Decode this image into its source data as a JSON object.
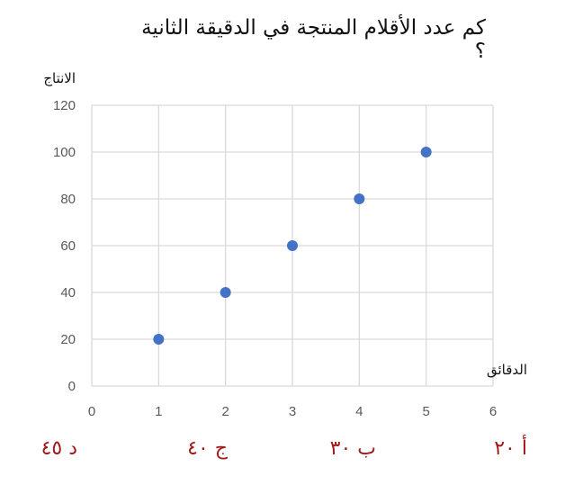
{
  "question": "كم عدد الأقلام المنتجة في الدقيقة الثانية ؟",
  "chart_data": {
    "type": "scatter",
    "ylabel": "الانتاج",
    "xlabel": "الدقائق",
    "x": [
      1,
      2,
      3,
      4,
      5
    ],
    "y": [
      20,
      40,
      60,
      80,
      100
    ],
    "xlim": [
      0,
      6
    ],
    "ylim": [
      0,
      120
    ],
    "xticks": [
      0,
      1,
      2,
      3,
      4,
      5,
      6
    ],
    "yticks": [
      0,
      20,
      40,
      60,
      80,
      100,
      120
    ],
    "grid": true,
    "point_color": "#4472c4",
    "grid_color": "#d9d9d9"
  },
  "options": [
    {
      "letter": "أ",
      "value": "٢٠"
    },
    {
      "letter": "ب",
      "value": "٣٠"
    },
    {
      "letter": "ج",
      "value": "٤٠"
    },
    {
      "letter": "د",
      "value": "٤٥"
    }
  ],
  "option_color": "#a01818"
}
